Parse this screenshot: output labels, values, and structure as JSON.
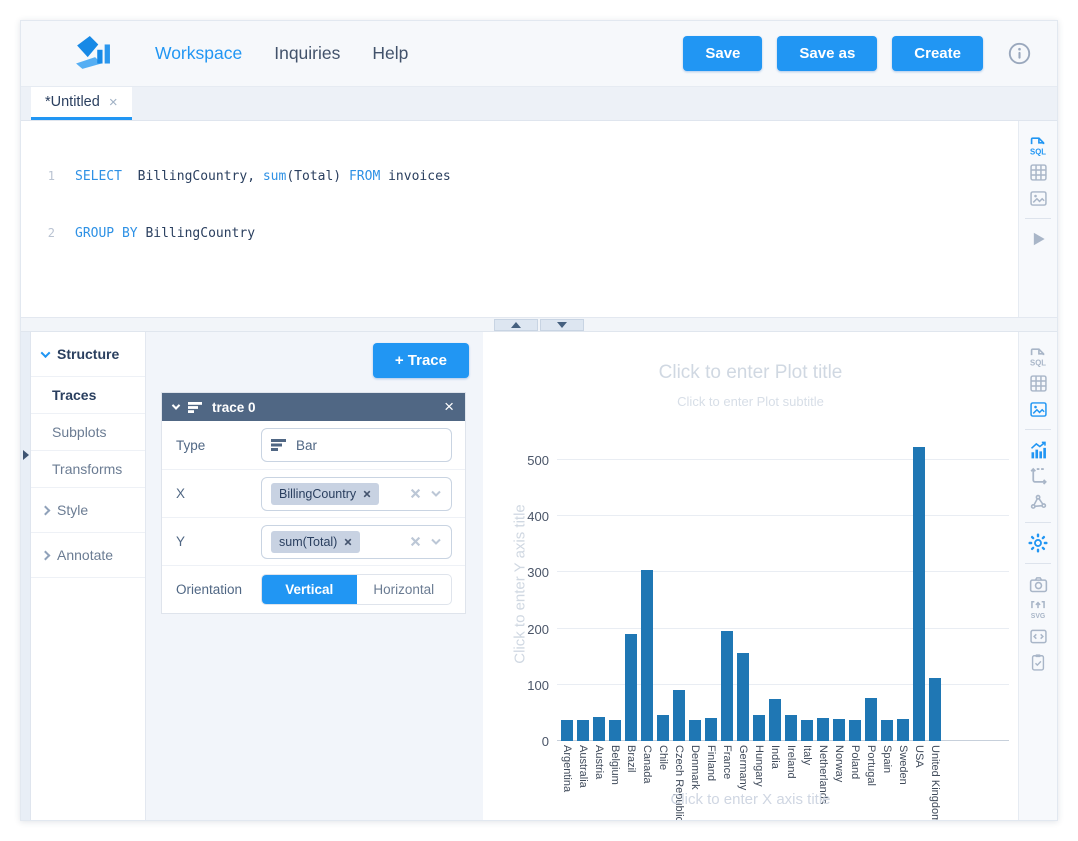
{
  "colors": {
    "accent": "#2196f3",
    "trace_header": "#506784",
    "keyword": "#2e91e5",
    "dark_text": "#2a3f5f"
  },
  "nav": {
    "items": [
      {
        "label": "Workspace",
        "active": true
      },
      {
        "label": "Inquiries",
        "active": false
      },
      {
        "label": "Help",
        "active": false
      }
    ],
    "buttons": [
      {
        "label": "Save"
      },
      {
        "label": "Save as"
      },
      {
        "label": "Create"
      }
    ]
  },
  "tabs": [
    {
      "label": "*Untitled",
      "close": "×",
      "active": true
    }
  ],
  "editor": {
    "lines": [
      {
        "num": "1",
        "t0": "SELECT",
        "t1": "  BillingCountry, ",
        "t2": "sum",
        "t3": "(Total) ",
        "t4": "FROM",
        "t5": " invoices"
      },
      {
        "num": "2",
        "t0": "GROUP BY",
        "t1": " BillingCountry"
      }
    ]
  },
  "icons": {
    "rail_editor": [
      {
        "name": "sql-file-icon",
        "active": true
      },
      {
        "name": "table-grid-icon",
        "active": false
      },
      {
        "name": "image-chart-icon",
        "active": false
      },
      {
        "name": "run-play-icon",
        "active": false
      }
    ],
    "rail_chart": [
      {
        "name": "sql-file-icon",
        "active": false
      },
      {
        "name": "table-grid-icon",
        "active": false
      },
      {
        "name": "image-chart-icon",
        "active": true
      },
      {
        "name": "trace-chart-icon",
        "active": true
      },
      {
        "name": "subplot-axes-icon",
        "active": false
      },
      {
        "name": "shapes-lasso-icon",
        "active": false
      },
      {
        "name": "settings-gear-icon",
        "active": true
      },
      {
        "name": "camera-icon",
        "active": false
      },
      {
        "name": "svg-export-icon",
        "active": false
      },
      {
        "name": "code-export-icon",
        "active": false
      },
      {
        "name": "clipboard-check-icon",
        "active": false
      }
    ]
  },
  "sidebar": {
    "items": [
      {
        "label": "Structure",
        "expanded": true
      },
      {
        "label": "Traces",
        "active": true
      },
      {
        "label": "Subplots"
      },
      {
        "label": "Transforms"
      },
      {
        "label": "Style",
        "collapsed": true
      },
      {
        "label": "Annotate",
        "collapsed": true
      }
    ]
  },
  "panel": {
    "add_trace_label": "+ Trace",
    "trace": {
      "title": "trace 0",
      "close": "×",
      "rows": {
        "type": {
          "label": "Type",
          "value": "Bar"
        },
        "x": {
          "label": "X",
          "chip": "BillingCountry"
        },
        "y": {
          "label": "Y",
          "chip": "sum(Total)"
        },
        "orientation": {
          "label": "Orientation",
          "options": [
            "Vertical",
            "Horizontal"
          ],
          "selected": "Vertical"
        }
      }
    }
  },
  "chart": {
    "title_placeholder": "Click to enter Plot title",
    "subtitle_placeholder": "Click to enter Plot subtitle",
    "y_title_placeholder": "Click to enter Y axis title",
    "x_title_placeholder": "Click to enter X axis title"
  },
  "chart_data": {
    "type": "bar",
    "categories": [
      "Argentina",
      "Australia",
      "Austria",
      "Belgium",
      "Brazil",
      "Canada",
      "Chile",
      "Czech Republic",
      "Denmark",
      "Finland",
      "France",
      "Germany",
      "Hungary",
      "India",
      "Ireland",
      "Italy",
      "Netherlands",
      "Norway",
      "Poland",
      "Portugal",
      "Spain",
      "Sweden",
      "USA",
      "United Kingdom"
    ],
    "values": [
      37.62,
      37.62,
      42.62,
      37.62,
      190.1,
      303.96,
      46.62,
      90.24,
      37.62,
      41.62,
      195.1,
      156.48,
      45.62,
      75.26,
      45.62,
      37.62,
      40.62,
      39.62,
      37.62,
      77.24,
      37.62,
      38.62,
      523.06,
      112.86
    ],
    "title": "",
    "xlabel": "",
    "ylabel": "",
    "yticks": [
      0,
      100,
      200,
      300,
      400,
      500
    ],
    "ylim": [
      0,
      557
    ],
    "grid": true,
    "legend": false,
    "bar_color": "#1f77b4"
  }
}
